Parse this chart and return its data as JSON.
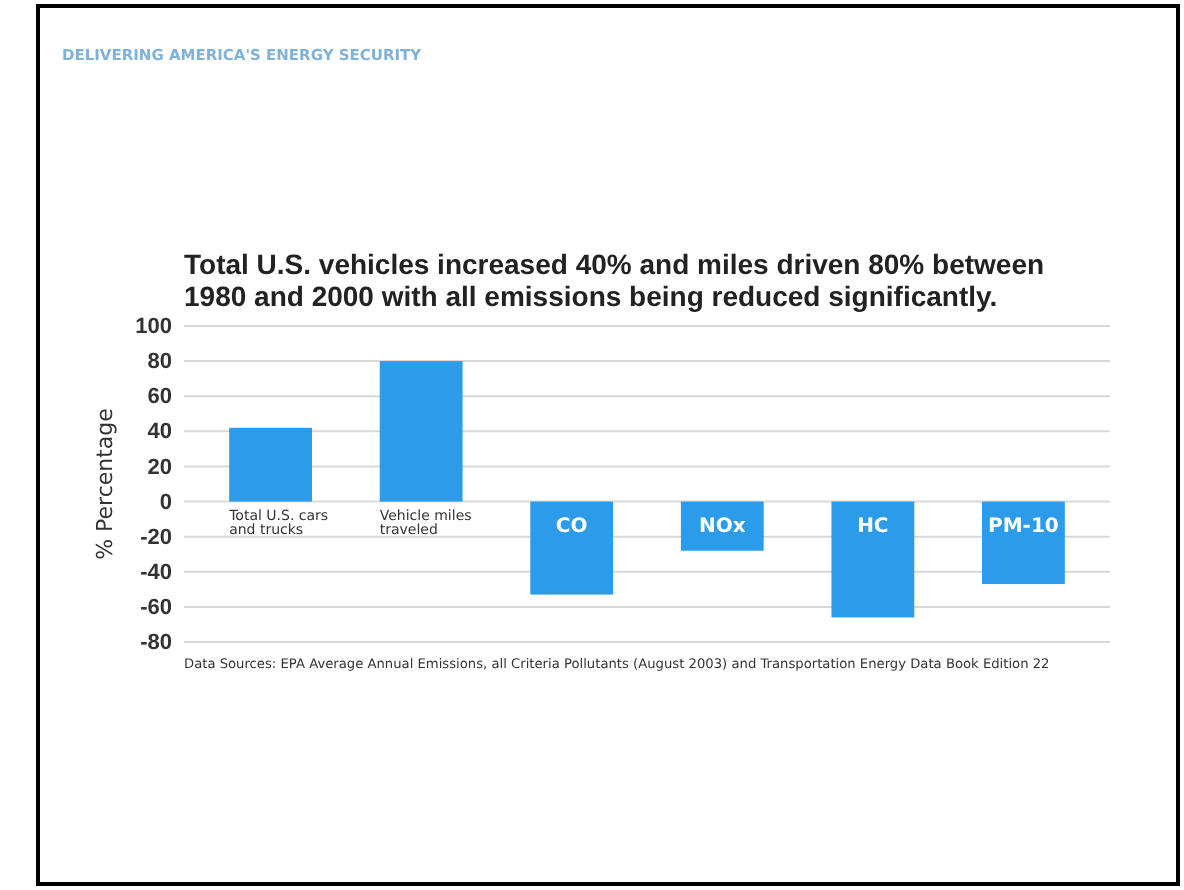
{
  "chart_data": {
    "type": "bar",
    "title": "Total U.S. vehicles increased 40% and miles driven 80% between 1980 and 2000 with all emissions being reduced significantly.",
    "ylabel": "% Percentage",
    "categories": [
      "Total U.S. cars and trucks",
      "Vehicle miles traveled",
      "CO",
      "NOx",
      "HC",
      "PM-10"
    ],
    "values": [
      42,
      80,
      -53,
      -28,
      -66,
      -47
    ],
    "color": "#2b9bea",
    "ylim": [
      -80,
      100
    ],
    "yticks": [
      -80,
      -60,
      -40,
      -20,
      0,
      20,
      40,
      60,
      80,
      100
    ],
    "grid": "y",
    "annotations": [
      "DELIVERING AMERICA'S ENERGY SECURITY",
      "Data Sources: EPA Average Annual Emissions, all Criteria Pollutants (August 2003) and Transportation Energy Data Book Edition 22"
    ]
  }
}
